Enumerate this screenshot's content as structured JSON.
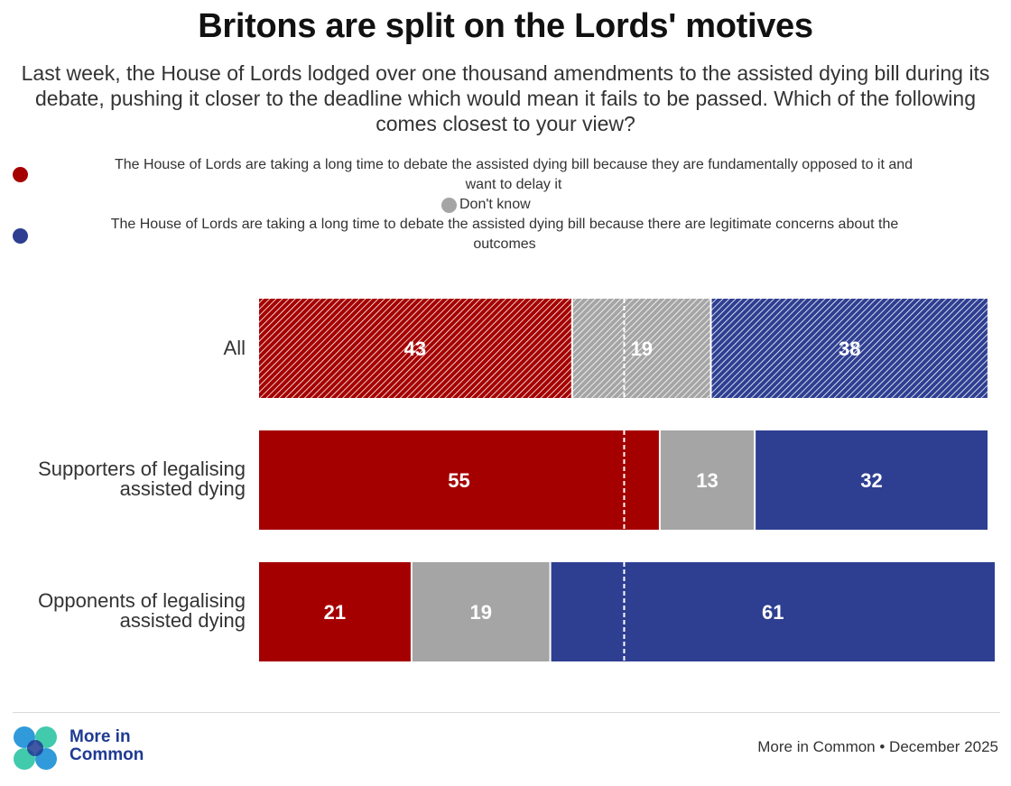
{
  "title": "Britons are split on the Lords' motives",
  "subtitle": "Last week, the House of Lords lodged over one thousand amendments to the assisted dying bill during its debate, pushing it closer to the deadline which would mean it fails to be passed. Which of the following comes closest to your view?",
  "legend": {
    "opposed": {
      "line1": "The House of Lords are taking a long time to debate the assisted dying bill because they are fundamentally opposed to it and",
      "line2": "want to delay it",
      "color": "#a50000"
    },
    "dont_know": {
      "label": "Don't know",
      "color": "#a5a5a5"
    },
    "concerns": {
      "line1": "The House of Lords are taking a long time to debate the assisted dying bill because there are legitimate concerns about the",
      "line2": "outcomes",
      "color": "#2e3f92"
    }
  },
  "rows": {
    "all": {
      "label": "All"
    },
    "supporters": {
      "line1": "Supporters of legalising",
      "line2": "assisted dying"
    },
    "opponents": {
      "line1": "Opponents of legalising",
      "line2": "assisted dying"
    }
  },
  "chart_data": {
    "type": "bar",
    "orientation": "horizontal",
    "stacked": true,
    "categories": [
      "All",
      "Supporters of legalising assisted dying",
      "Opponents of legalising assisted dying"
    ],
    "series": [
      {
        "name": "The House of Lords are taking a long time to debate the assisted dying bill because they are fundamentally opposed to it and want to delay it",
        "values": [
          43,
          55,
          21
        ],
        "color": "#a50000"
      },
      {
        "name": "Don't know",
        "values": [
          19,
          13,
          19
        ],
        "color": "#a5a5a5"
      },
      {
        "name": "The House of Lords are taking a long time to debate the assisted dying bill because there are legitimate concerns about the outcomes",
        "values": [
          38,
          32,
          61
        ],
        "color": "#2e3f92"
      }
    ],
    "hatched_categories": [
      "All"
    ],
    "reference_line": 50,
    "xlim": [
      0,
      101
    ],
    "title": "Britons are split on the Lords' motives"
  },
  "footer": {
    "brand_line1": "More in",
    "brand_line2": "Common",
    "source": "More in Common • December 2025"
  }
}
